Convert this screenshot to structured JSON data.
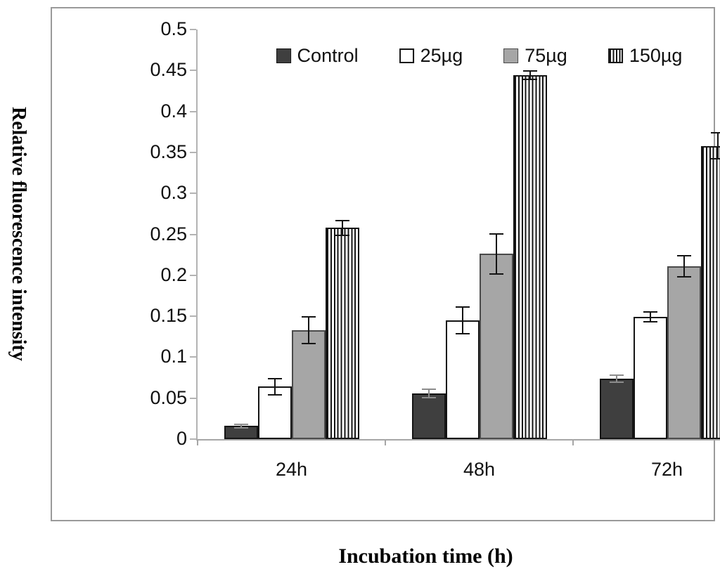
{
  "figure": {
    "ylabel": "Relative fluorescence intensity",
    "xlabel": "Incubation time (h)"
  },
  "chart_data": {
    "type": "bar",
    "title": "",
    "xlabel": "Incubation time (h)",
    "ylabel": "Relative fluorescence intensity",
    "categories": [
      "24h",
      "48h",
      "72h"
    ],
    "series": [
      {
        "name": "Control",
        "values": [
          0.016,
          0.056,
          0.074
        ],
        "errors": [
          0.003,
          0.006,
          0.005
        ],
        "fill": "#3f3f3f",
        "border": "#141414",
        "pattern": "solid",
        "error_color": "#8c8c8c"
      },
      {
        "name": "25µg",
        "values": [
          0.064,
          0.145,
          0.149
        ],
        "errors": [
          0.011,
          0.017,
          0.007
        ],
        "fill": "#ffffff",
        "border": "#141414",
        "pattern": "solid",
        "error_color": "#141414"
      },
      {
        "name": "75µg",
        "values": [
          0.133,
          0.226,
          0.211
        ],
        "errors": [
          0.017,
          0.025,
          0.014
        ],
        "fill": "#a6a6a6",
        "border": "#4a4a4a",
        "pattern": "solid",
        "error_color": "#141414"
      },
      {
        "name": "150µg",
        "values": [
          0.258,
          0.444,
          0.358
        ],
        "errors": [
          0.01,
          0.006,
          0.017
        ],
        "fill": "#ffffff",
        "border": "#141414",
        "pattern": "vertical-stripes",
        "error_color": "#141414"
      }
    ],
    "ylim": [
      0,
      0.5
    ],
    "ytick_step": 0.05,
    "ytick_labels": [
      "0",
      "0.05",
      "0.1",
      "0.15",
      "0.2",
      "0.25",
      "0.3",
      "0.35",
      "0.4",
      "0.45",
      "0.5"
    ],
    "legend_position": "top-inside",
    "grid": false,
    "frame_color": "#9a9a9a",
    "axis_color": "#a6a6a6"
  }
}
